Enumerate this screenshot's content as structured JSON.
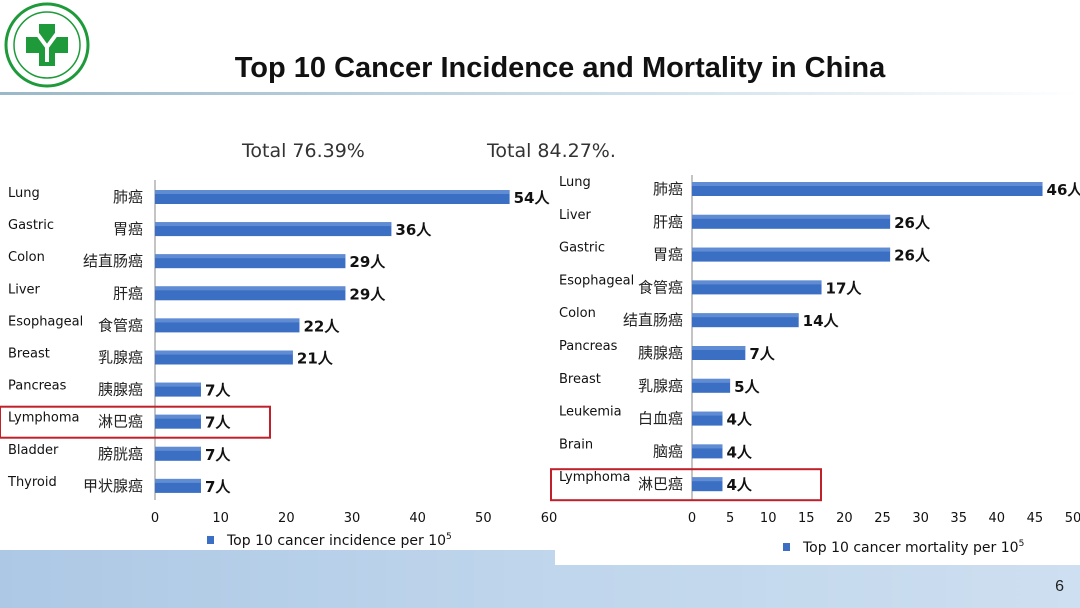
{
  "slide": {
    "title": "Top 10 Cancer Incidence and Mortality in China",
    "page_number": "6",
    "total_left": "Total 76.39%",
    "total_right": "Total 84.27%.",
    "colors": {
      "bar": "#3b6fc4",
      "highlight_box": "#c0202a",
      "wave": "#8fb3d9"
    },
    "logo_icon": "hospital-cross-logo"
  },
  "chart_data": [
    {
      "type": "bar",
      "orientation": "horizontal",
      "categories": [
        "Lung",
        "Gastric",
        "Colon",
        "Liver",
        "Esophageal",
        "Breast",
        "Pancreas",
        "Lymphoma",
        "Bladder",
        "Thyroid"
      ],
      "categories_zh": [
        "肺癌",
        "胃癌",
        "结直肠癌",
        "肝癌",
        "食管癌",
        "乳腺癌",
        "胰腺癌",
        "淋巴癌",
        "膀胱癌",
        "甲状腺癌"
      ],
      "values": [
        54,
        36,
        29,
        29,
        22,
        21,
        7,
        7,
        7,
        7
      ],
      "value_labels": [
        "54人",
        "36人",
        "29人",
        "29人",
        "22人",
        "21人",
        "7人",
        "7人",
        "7人",
        "7人"
      ],
      "xlim": [
        0,
        60
      ],
      "xticks": [
        "0",
        "10",
        "20",
        "30",
        "40",
        "50",
        "60"
      ],
      "legend": "Top 10 cancer incidence per 10",
      "legend_sup": "5",
      "highlighted": "Lymphoma"
    },
    {
      "type": "bar",
      "orientation": "horizontal",
      "categories": [
        "Lung",
        "Liver",
        "Gastric",
        "Esophageal",
        "Colon",
        "Pancreas",
        "Breast",
        "Leukemia",
        "Brain",
        "Lymphoma"
      ],
      "categories_zh": [
        "肺癌",
        "肝癌",
        "胃癌",
        "食管癌",
        "结直肠癌",
        "胰腺癌",
        "乳腺癌",
        "白血癌",
        "脑癌",
        "淋巴癌"
      ],
      "values": [
        46,
        26,
        26,
        17,
        14,
        7,
        5,
        4,
        4,
        4
      ],
      "value_labels": [
        "46人",
        "26人",
        "26人",
        "17人",
        "14人",
        "7人",
        "5人",
        "4人",
        "4人",
        "4人"
      ],
      "xlim": [
        0,
        50
      ],
      "xticks": [
        "0",
        "5",
        "10",
        "15",
        "20",
        "25",
        "30",
        "35",
        "40",
        "45",
        "50"
      ],
      "legend": "Top 10 cancer mortality per 10",
      "legend_sup": "5",
      "highlighted": "Lymphoma"
    }
  ]
}
